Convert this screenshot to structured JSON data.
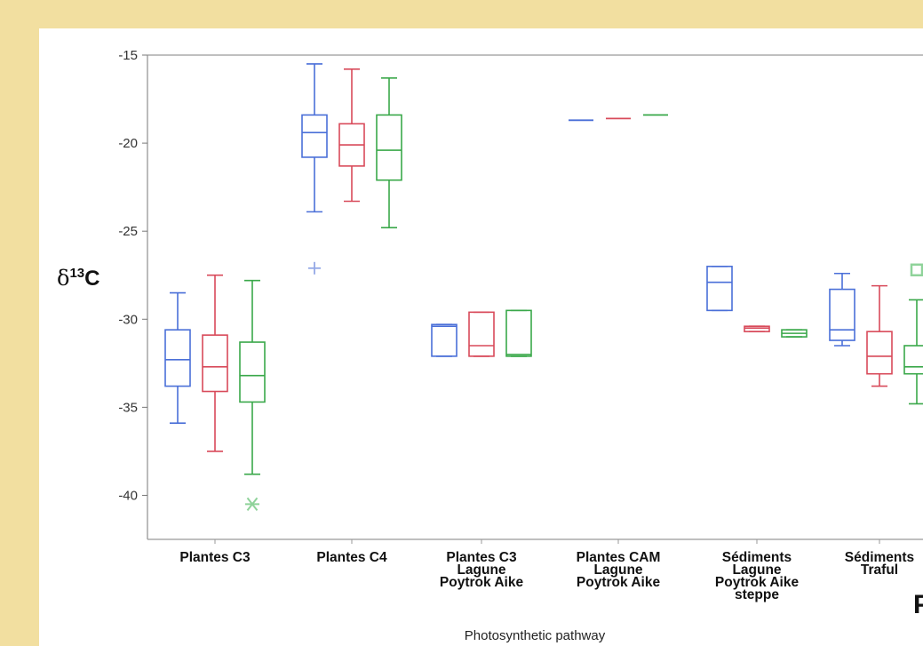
{
  "colors": {
    "background": "#f2dfa0",
    "panel": "#ffffff",
    "series": [
      "#4a6fd8",
      "#d84a5a",
      "#3aa84a"
    ],
    "outlier_series": [
      "#93a8e6",
      "#e6939c",
      "#8fd39a"
    ]
  },
  "chart_data": {
    "type": "box",
    "title": "",
    "xlabel": "Photosynthetic pathway",
    "ylabel": {
      "prefix": "δ",
      "superscript": "13",
      "main": "C"
    },
    "ylim": [
      -42.5,
      -15
    ],
    "yticks": [
      -15,
      -20,
      -25,
      -30,
      -35,
      -40
    ],
    "ytick_labels": [
      "-15",
      "-20",
      "-25",
      "-30",
      "-35",
      "-40"
    ],
    "grid": false,
    "edge_text": "P",
    "categories": [
      {
        "lines": [
          "Plantes C3"
        ]
      },
      {
        "lines": [
          "Plantes C4"
        ]
      },
      {
        "lines": [
          "Plantes C3",
          "Lagune",
          "Poytrok Aike"
        ]
      },
      {
        "lines": [
          "Plantes CAM",
          "Lagune",
          "Poytrok Aike"
        ]
      },
      {
        "lines": [
          "Sédiments",
          "Lagune",
          "Poytrok Aike",
          "steppe"
        ]
      },
      {
        "lines": [
          "Sédiments",
          "Traful"
        ]
      }
    ],
    "groups": [
      {
        "boxes": [
          {
            "series": 0,
            "min": -35.9,
            "q1": -33.8,
            "median": -32.3,
            "q3": -30.6,
            "max": -28.5
          },
          {
            "series": 1,
            "min": -37.5,
            "q1": -34.1,
            "median": -32.7,
            "q3": -30.9,
            "max": -27.5
          },
          {
            "series": 2,
            "min": -38.8,
            "q1": -34.7,
            "median": -33.2,
            "q3": -31.3,
            "max": -27.8,
            "outliers": [
              {
                "value": -40.5,
                "marker": "asterisk"
              }
            ]
          }
        ]
      },
      {
        "boxes": [
          {
            "series": 0,
            "min": -23.9,
            "q1": -20.8,
            "median": -19.4,
            "q3": -18.4,
            "max": -15.5,
            "outliers": [
              {
                "value": -27.1,
                "marker": "plus"
              }
            ]
          },
          {
            "series": 1,
            "min": -23.3,
            "q1": -21.3,
            "median": -20.1,
            "q3": -18.9,
            "max": -15.8
          },
          {
            "series": 2,
            "min": -24.8,
            "q1": -22.1,
            "median": -20.4,
            "q3": -18.4,
            "max": -16.3
          }
        ]
      },
      {
        "boxes": [
          {
            "series": 0,
            "min": -32.1,
            "q1": -32.1,
            "median": -30.4,
            "q3": -30.3,
            "max": -30.3
          },
          {
            "series": 1,
            "min": -32.1,
            "q1": -32.1,
            "median": -31.5,
            "q3": -29.6,
            "max": -29.6
          },
          {
            "series": 2,
            "min": -32.1,
            "q1": -32.1,
            "median": -32.0,
            "q3": -29.5,
            "max": -29.5
          }
        ]
      },
      {
        "boxes": [
          {
            "series": 0,
            "value": -18.7
          },
          {
            "series": 1,
            "value": -18.6
          },
          {
            "series": 2,
            "value": -18.4
          }
        ]
      },
      {
        "boxes": [
          {
            "series": 0,
            "min": -29.5,
            "q1": -29.5,
            "median": -27.9,
            "q3": -27.0,
            "max": -27.0
          },
          {
            "series": 1,
            "min": -30.7,
            "q1": -30.7,
            "median": -30.5,
            "q3": -30.4,
            "max": -30.4
          },
          {
            "series": 2,
            "min": -31.0,
            "q1": -31.0,
            "median": -30.8,
            "q3": -30.6,
            "max": -30.6
          }
        ]
      },
      {
        "boxes": [
          {
            "series": 0,
            "min": -31.5,
            "q1": -31.2,
            "median": -30.6,
            "q3": -28.3,
            "max": -27.4
          },
          {
            "series": 1,
            "min": -33.8,
            "q1": -33.1,
            "median": -32.1,
            "q3": -30.7,
            "max": -28.1
          },
          {
            "series": 2,
            "min": -34.8,
            "q1": -33.1,
            "median": -32.7,
            "q3": -31.5,
            "max": -28.9,
            "outliers": [
              {
                "value": -27.2,
                "marker": "square"
              }
            ]
          }
        ]
      }
    ]
  }
}
